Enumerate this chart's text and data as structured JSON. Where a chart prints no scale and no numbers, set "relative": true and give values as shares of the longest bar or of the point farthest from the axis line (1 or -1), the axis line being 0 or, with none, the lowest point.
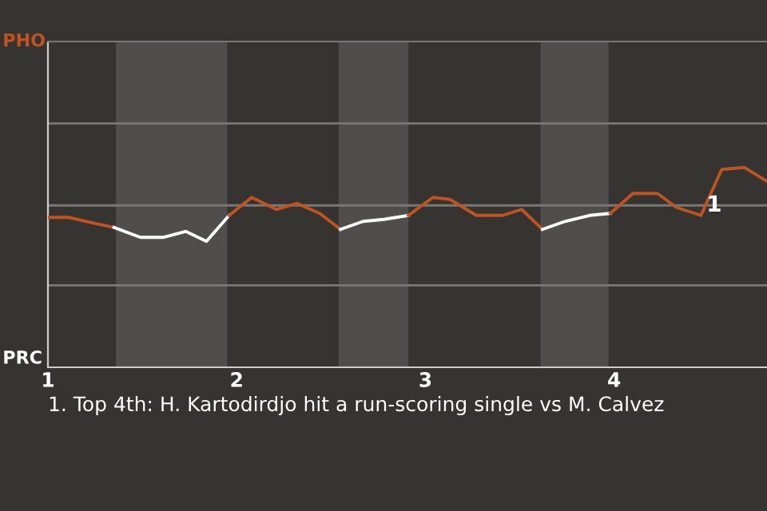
{
  "chart_data": {
    "type": "line",
    "series": [
      {
        "color": "#c0531f",
        "x": [
          1.0,
          1.11,
          1.25,
          1.35
        ],
        "values": [
          0.75,
          0.75,
          0.72,
          0.7
        ]
      },
      {
        "color": "#ffffff",
        "x": [
          1.35,
          1.49,
          1.61,
          1.73,
          1.84,
          1.96
        ],
        "values": [
          0.7,
          0.65,
          0.65,
          0.68,
          0.63,
          0.76
        ]
      },
      {
        "color": "#c0531f",
        "x": [
          1.96,
          2.08,
          2.21,
          2.32,
          2.44,
          2.55
        ],
        "values": [
          0.76,
          0.85,
          0.79,
          0.82,
          0.77,
          0.69
        ]
      },
      {
        "color": "#ffffff",
        "x": [
          2.55,
          2.67,
          2.78,
          2.91
        ],
        "values": [
          0.69,
          0.73,
          0.74,
          0.76
        ]
      },
      {
        "color": "#c0531f",
        "x": [
          2.91,
          3.04,
          3.13,
          3.27,
          3.41,
          3.51,
          3.62
        ],
        "values": [
          0.76,
          0.85,
          0.84,
          0.76,
          0.76,
          0.79,
          0.69
        ]
      },
      {
        "color": "#ffffff",
        "x": [
          3.62,
          3.74,
          3.87,
          3.98
        ],
        "values": [
          0.69,
          0.73,
          0.76,
          0.77
        ]
      },
      {
        "color": "#c0531f",
        "x": [
          3.98,
          4.1,
          4.23,
          4.33,
          4.46,
          4.57,
          4.69,
          4.81
        ],
        "values": [
          0.77,
          0.87,
          0.87,
          0.8,
          0.76,
          0.99,
          1.0,
          0.93
        ]
      }
    ],
    "relative": true,
    "xlim": [
      1,
      4.81
    ],
    "xticks": [
      1,
      2,
      3,
      4
    ],
    "bands": [
      {
        "axis": "x",
        "from": 1.36,
        "to": 1.95,
        "color": "#4f4e4c"
      },
      {
        "axis": "x",
        "from": 2.54,
        "to": 2.91,
        "color": "#4f4e4c"
      },
      {
        "axis": "x",
        "from": 3.61,
        "to": 3.97,
        "color": "#4f4e4c"
      }
    ],
    "annotations": [
      "PHO",
      "PRC",
      {
        "text": "1",
        "x": 4.53,
        "y": 0.81
      },
      "1. Top 4th: H. Kartodirdjo hit a run-scoring single vs M. Calvez"
    ],
    "legend": false,
    "ref_lines": [
      {
        "axis": "y",
        "value": 0.41,
        "color": "#7a7876"
      },
      {
        "axis": "y",
        "value": 0.81,
        "color": "#7a7876"
      },
      {
        "axis": "y",
        "value": 1.22,
        "color": "#7a7876"
      }
    ],
    "marker": "none",
    "line_style": "solid"
  }
}
